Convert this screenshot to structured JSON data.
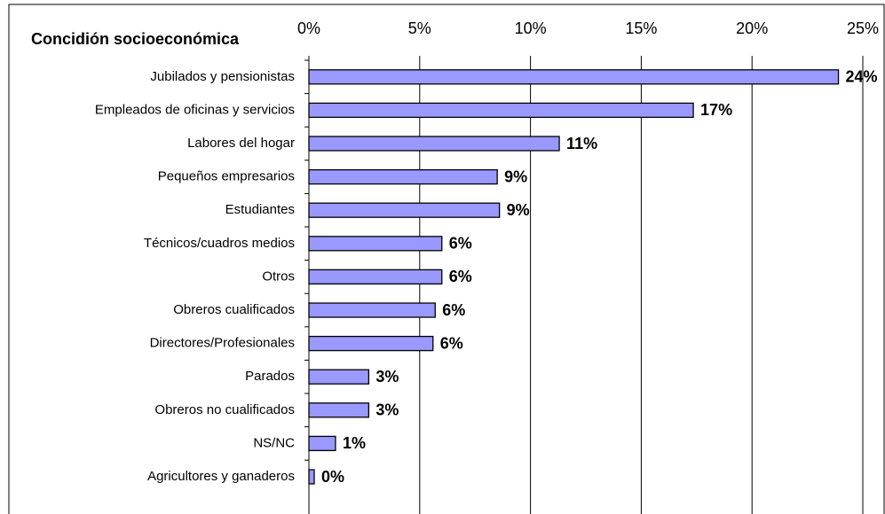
{
  "chart_data": {
    "type": "bar",
    "orientation": "horizontal",
    "title": "Concidión socioeconómica",
    "categories": [
      "Jubilados y pensionistas",
      "Empleados de oficinas y servicios",
      "Labores del hogar",
      "Pequeños empresarios",
      "Estudiantes",
      "Técnicos/cuadros medios",
      "Otros",
      "Obreros cualificados",
      "Directores/Profesionales",
      "Parados",
      "Obreros no cualificados",
      "NS/NC",
      "Agricultores y ganaderos"
    ],
    "values": [
      23.9,
      17.35,
      11.3,
      8.5,
      8.6,
      6.0,
      6.0,
      5.7,
      5.6,
      2.7,
      2.7,
      1.2,
      0.24
    ],
    "value_labels": [
      "24%",
      "17%",
      "11%",
      "9%",
      "9%",
      "6%",
      "6%",
      "6%",
      "6%",
      "3%",
      "3%",
      "1%",
      "0%"
    ],
    "color": "#9999ff",
    "xlim": [
      0,
      25
    ],
    "xticks": [
      {
        "value": 0,
        "label": "0%"
      },
      {
        "value": 5,
        "label": "5%"
      },
      {
        "value": 10,
        "label": "10%"
      },
      {
        "value": 15,
        "label": "15%"
      },
      {
        "value": 20,
        "label": "20%"
      },
      {
        "value": 25,
        "label": "25%"
      }
    ],
    "grid": true
  }
}
